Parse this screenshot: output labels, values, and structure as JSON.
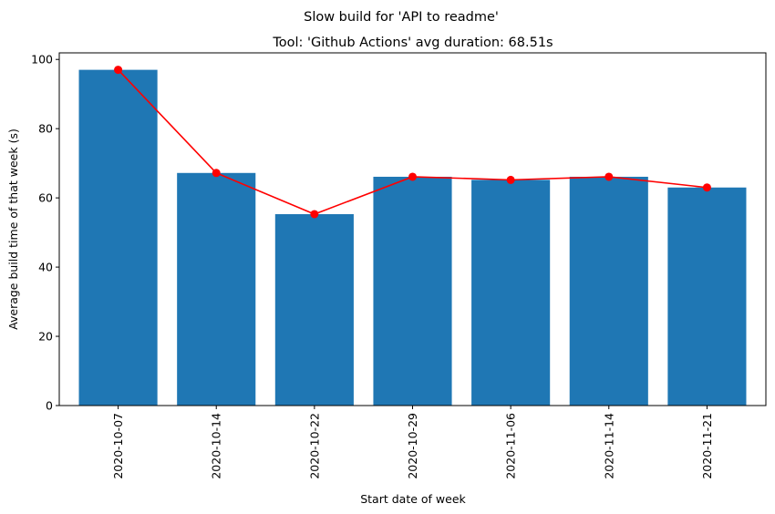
{
  "chart_data": {
    "type": "bar",
    "suptitle": "Slow build for 'API to readme'",
    "title": "Tool: 'Github Actions' avg duration: 68.51s",
    "xlabel": "Start date of week",
    "ylabel": "Average build time of that week (s)",
    "categories": [
      "2020-10-07",
      "2020-10-14",
      "2020-10-22",
      "2020-10-29",
      "2020-11-06",
      "2020-11-14",
      "2020-11-21"
    ],
    "values": [
      97.0,
      67.2,
      55.3,
      66.1,
      65.2,
      66.1,
      63.0
    ],
    "line_values": [
      97.0,
      67.2,
      55.3,
      66.1,
      65.2,
      66.1,
      63.0
    ],
    "ylim": [
      0,
      101.9
    ],
    "yticks": [
      0,
      20,
      40,
      60,
      80,
      100
    ],
    "bar_color": "#1f77b4",
    "line_color": "#ff0000",
    "grid": false
  }
}
